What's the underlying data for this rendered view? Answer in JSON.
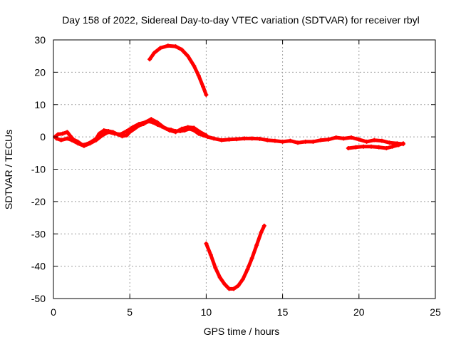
{
  "chart_data": {
    "type": "line",
    "title": "Day 158 of 2022, Sidereal Day-to-day VTEC variation (SDTVAR) for receiver rbyl",
    "xlabel": "GPS time / hours",
    "ylabel": "SDTVAR / TECUs",
    "xlim": [
      0,
      25
    ],
    "ylim": [
      -50,
      30
    ],
    "x_ticks": [
      0,
      5,
      10,
      15,
      20,
      25
    ],
    "y_ticks": [
      30,
      20,
      10,
      0,
      -10,
      -20,
      -30,
      -40,
      -50
    ],
    "x_tick_labels": [
      "0",
      "5",
      "10",
      "15",
      "20",
      "25"
    ],
    "y_tick_labels": [
      "30",
      "20",
      "10",
      "0",
      "-10",
      "-20",
      "-30",
      "-40",
      "-50"
    ],
    "grid": true,
    "legend": "none",
    "series_color": "#ff0000",
    "series": [
      {
        "name": "main-arc",
        "points": [
          [
            0.1,
            0.0
          ],
          [
            0.3,
            0.8
          ],
          [
            0.6,
            1.0
          ],
          [
            0.9,
            1.5
          ],
          [
            1.1,
            0.3
          ],
          [
            1.3,
            -0.8
          ],
          [
            1.6,
            -1.5
          ],
          [
            1.9,
            -2.5
          ],
          [
            2.2,
            -2.2
          ],
          [
            2.5,
            -1.5
          ],
          [
            2.8,
            -0.5
          ],
          [
            3.0,
            1.0
          ],
          [
            3.3,
            2.0
          ],
          [
            3.6,
            1.8
          ],
          [
            3.9,
            1.5
          ],
          [
            4.2,
            0.8
          ],
          [
            4.5,
            0.2
          ],
          [
            4.8,
            0.5
          ],
          [
            5.0,
            1.5
          ],
          [
            5.3,
            2.5
          ],
          [
            5.6,
            3.5
          ],
          [
            5.9,
            4.0
          ],
          [
            6.2,
            4.8
          ],
          [
            6.5,
            4.5
          ],
          [
            6.8,
            3.8
          ],
          [
            7.1,
            3.2
          ],
          [
            7.4,
            2.5
          ],
          [
            7.7,
            2.2
          ],
          [
            8.0,
            1.8
          ],
          [
            8.3,
            1.8
          ],
          [
            8.6,
            2.0
          ],
          [
            8.9,
            2.5
          ],
          [
            9.2,
            2.0
          ],
          [
            9.5,
            1.0
          ],
          [
            9.8,
            0.5
          ],
          [
            10.1,
            0.0
          ],
          [
            10.5,
            -0.5
          ],
          [
            11.0,
            -1.0
          ],
          [
            11.5,
            -0.8
          ],
          [
            12.0,
            -0.7
          ],
          [
            12.5,
            -0.5
          ],
          [
            13.0,
            -0.5
          ],
          [
            13.5,
            -0.6
          ],
          [
            14.0,
            -1.0
          ],
          [
            14.5,
            -1.2
          ],
          [
            15.0,
            -1.5
          ],
          [
            15.5,
            -1.2
          ],
          [
            16.0,
            -1.8
          ],
          [
            16.5,
            -1.5
          ],
          [
            17.0,
            -1.5
          ],
          [
            17.5,
            -1.0
          ],
          [
            18.0,
            -0.8
          ],
          [
            18.5,
            -0.2
          ],
          [
            19.0,
            -0.5
          ],
          [
            19.5,
            -0.2
          ],
          [
            20.0,
            -0.8
          ],
          [
            20.5,
            -1.5
          ],
          [
            21.0,
            -1.0
          ],
          [
            21.5,
            -1.2
          ],
          [
            22.0,
            -1.8
          ],
          [
            22.5,
            -2.0
          ],
          [
            22.9,
            -2.2
          ]
        ]
      },
      {
        "name": "secondary-arc",
        "points": [
          [
            0.2,
            -0.5
          ],
          [
            0.5,
            -1.0
          ],
          [
            0.9,
            -0.5
          ],
          [
            1.2,
            -1.0
          ],
          [
            1.6,
            -2.0
          ],
          [
            2.0,
            -2.8
          ],
          [
            2.4,
            -2.0
          ],
          [
            2.8,
            -1.0
          ],
          [
            3.2,
            0.5
          ],
          [
            3.6,
            1.5
          ],
          [
            4.0,
            1.0
          ],
          [
            4.4,
            0.8
          ],
          [
            4.8,
            1.8
          ],
          [
            5.2,
            3.0
          ],
          [
            5.6,
            4.0
          ],
          [
            6.0,
            4.5
          ],
          [
            6.4,
            5.5
          ],
          [
            6.8,
            4.5
          ],
          [
            7.2,
            3.0
          ],
          [
            7.6,
            2.0
          ],
          [
            8.0,
            1.5
          ],
          [
            8.4,
            2.5
          ],
          [
            8.8,
            3.0
          ],
          [
            9.2,
            2.8
          ],
          [
            9.6,
            1.5
          ],
          [
            10.0,
            0.5
          ]
        ]
      },
      {
        "name": "late-arc",
        "points": [
          [
            19.3,
            -3.5
          ],
          [
            19.8,
            -3.2
          ],
          [
            20.3,
            -3.0
          ],
          [
            20.8,
            -3.0
          ],
          [
            21.3,
            -3.2
          ],
          [
            21.8,
            -3.5
          ],
          [
            22.2,
            -3.0
          ],
          [
            22.6,
            -2.5
          ],
          [
            22.9,
            -2.0
          ]
        ]
      },
      {
        "name": "positive-arc",
        "points": [
          [
            6.3,
            24.0
          ],
          [
            6.6,
            26.0
          ],
          [
            7.0,
            27.5
          ],
          [
            7.5,
            28.2
          ],
          [
            8.0,
            28.0
          ],
          [
            8.4,
            27.0
          ],
          [
            8.8,
            25.0
          ],
          [
            9.2,
            22.0
          ],
          [
            9.5,
            19.0
          ],
          [
            9.8,
            15.5
          ],
          [
            10.0,
            13.0
          ]
        ]
      },
      {
        "name": "negative-arc",
        "points": [
          [
            10.0,
            -33.0
          ],
          [
            10.3,
            -36.5
          ],
          [
            10.6,
            -40.5
          ],
          [
            10.9,
            -43.5
          ],
          [
            11.2,
            -45.5
          ],
          [
            11.5,
            -47.0
          ],
          [
            11.8,
            -47.0
          ],
          [
            12.1,
            -46.0
          ],
          [
            12.4,
            -44.0
          ],
          [
            12.7,
            -41.0
          ],
          [
            13.0,
            -37.5
          ],
          [
            13.3,
            -33.5
          ],
          [
            13.6,
            -29.5
          ],
          [
            13.8,
            -27.5
          ]
        ]
      }
    ]
  }
}
